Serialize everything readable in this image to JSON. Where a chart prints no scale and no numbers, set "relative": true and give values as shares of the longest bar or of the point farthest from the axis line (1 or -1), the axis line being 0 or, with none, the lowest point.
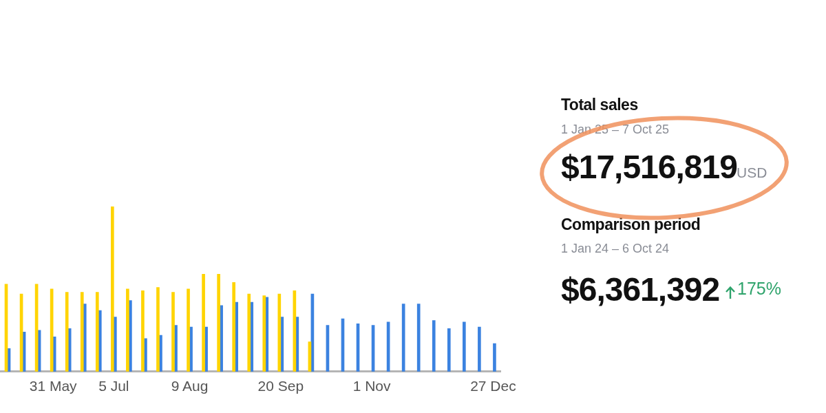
{
  "chart_data": [
    {
      "type": "bar",
      "relative": true,
      "categories": [
        null,
        null,
        null,
        "31 May",
        null,
        null,
        null,
        "5 Jul",
        null,
        null,
        null,
        null,
        "9 Aug",
        null,
        null,
        null,
        null,
        null,
        "20 Sep",
        null,
        null,
        null,
        null,
        null,
        "1 Nov",
        null,
        null,
        null,
        null,
        null,
        null,
        null,
        "27 Dec"
      ],
      "series": [
        {
          "color": "#ffd400",
          "values": [
            0.53,
            0.47,
            0.53,
            0.5,
            0.48,
            0.48,
            0.48,
            1,
            0.5,
            0.49,
            0.51,
            0.48,
            0.5,
            0.59,
            0.59,
            0.54,
            0.47,
            0.46,
            0.47,
            0.49,
            0.18,
            null,
            null,
            null,
            null,
            null,
            null,
            null,
            null,
            null,
            null,
            null,
            null
          ]
        },
        {
          "color": "#3b82e0",
          "values": [
            0.14,
            0.24,
            0.25,
            0.21,
            0.26,
            0.41,
            0.37,
            0.33,
            0.43,
            0.2,
            0.22,
            0.28,
            0.27,
            0.27,
            0.4,
            0.42,
            0.42,
            0.45,
            0.33,
            0.33,
            0.47,
            0.28,
            0.32,
            0.29,
            0.28,
            0.3,
            0.41,
            0.41,
            0.31,
            0.26,
            0.3,
            0.27,
            0.17
          ]
        }
      ]
    },
    {
      "type": "other",
      "title": "Total sales",
      "subtitle": "1 Jan 25 – 7 Oct 25",
      "annotations": [
        "$17,516,819",
        "USD",
        "Comparison period",
        "1 Jan 24 – 6 Oct 24",
        "$6,361,392",
        "175%"
      ]
    }
  ]
}
